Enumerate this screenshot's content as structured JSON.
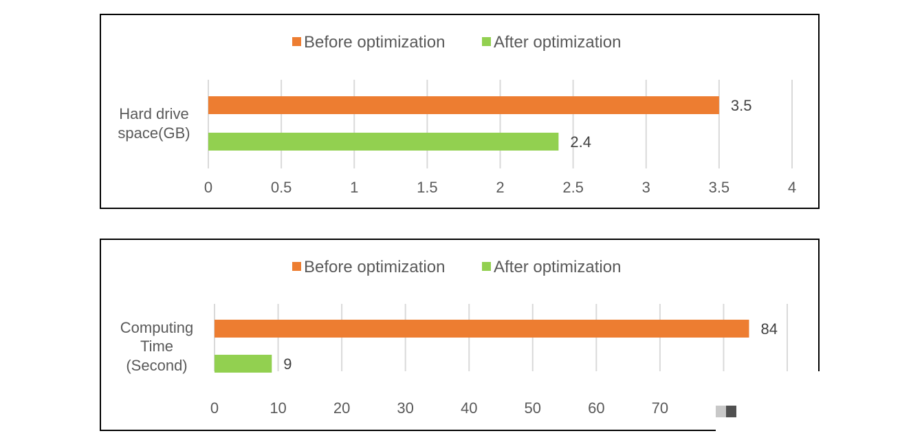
{
  "colors": {
    "before": "#ED7D31",
    "after": "#92D050",
    "grid": "#D9D9D9",
    "text": "#595959"
  },
  "chart_data": [
    {
      "type": "bar",
      "orientation": "horizontal",
      "categories": [
        "Hard drive space(GB)"
      ],
      "series": [
        {
          "name": "Before optimization",
          "values": [
            3.5
          ]
        },
        {
          "name": "After optimization",
          "values": [
            2.4
          ]
        }
      ],
      "value_labels": [
        "3.5",
        "2.4"
      ],
      "xlim": [
        0,
        4
      ],
      "ticks": [
        "0",
        "0.5",
        "1",
        "1.5",
        "2",
        "2.5",
        "3",
        "3.5",
        "4"
      ],
      "grid": true,
      "legend": "top"
    },
    {
      "type": "bar",
      "orientation": "horizontal",
      "categories": [
        "Computing Time (Second)"
      ],
      "series": [
        {
          "name": "Before optimization",
          "values": [
            84
          ]
        },
        {
          "name": "After optimization",
          "values": [
            9
          ]
        }
      ],
      "value_labels": [
        "84",
        "9"
      ],
      "xlim": [
        0,
        90
      ],
      "ticks": [
        "0",
        "10",
        "20",
        "30",
        "40",
        "50",
        "60",
        "70"
      ],
      "grid": true,
      "legend": "top"
    }
  ]
}
